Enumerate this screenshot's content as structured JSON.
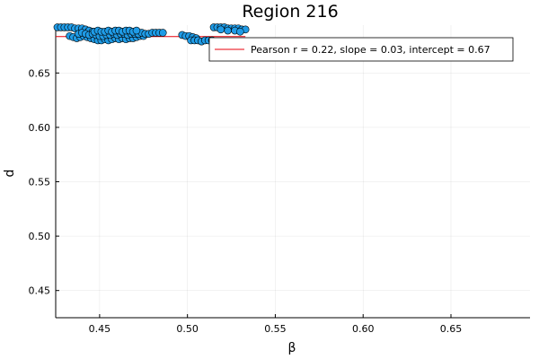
{
  "chart_data": {
    "type": "scatter",
    "title": "Region 216",
    "xlabel": "β",
    "ylabel": "d",
    "xlim": [
      0.425,
      0.695
    ],
    "ylim": [
      0.425,
      0.694
    ],
    "xticks": [
      0.45,
      0.5,
      0.55,
      0.6,
      0.65
    ],
    "xtick_labels": [
      "0.45",
      "0.50",
      "0.55",
      "0.60",
      "0.65"
    ],
    "yticks": [
      0.45,
      0.5,
      0.55,
      0.6,
      0.65
    ],
    "ytick_labels": [
      "0.45",
      "0.50",
      "0.55",
      "0.60",
      "0.65"
    ],
    "grid": true,
    "legend_position": "top-right",
    "series": [
      {
        "kind": "scatter",
        "color": "#1f9be6",
        "edge_color": "#000000",
        "points": [
          [
            0.426,
            0.692
          ],
          [
            0.428,
            0.692
          ],
          [
            0.43,
            0.692
          ],
          [
            0.432,
            0.692
          ],
          [
            0.434,
            0.692
          ],
          [
            0.436,
            0.691
          ],
          [
            0.438,
            0.691
          ],
          [
            0.44,
            0.691
          ],
          [
            0.442,
            0.69
          ],
          [
            0.444,
            0.689
          ],
          [
            0.446,
            0.688
          ],
          [
            0.448,
            0.687
          ],
          [
            0.433,
            0.684
          ],
          [
            0.435,
            0.683
          ],
          [
            0.437,
            0.682
          ],
          [
            0.439,
            0.683
          ],
          [
            0.441,
            0.684
          ],
          [
            0.443,
            0.683
          ],
          [
            0.445,
            0.682
          ],
          [
            0.447,
            0.681
          ],
          [
            0.449,
            0.68
          ],
          [
            0.451,
            0.68
          ],
          [
            0.453,
            0.681
          ],
          [
            0.455,
            0.68
          ],
          [
            0.457,
            0.681
          ],
          [
            0.459,
            0.682
          ],
          [
            0.461,
            0.681
          ],
          [
            0.463,
            0.682
          ],
          [
            0.465,
            0.681
          ],
          [
            0.467,
            0.682
          ],
          [
            0.469,
            0.682
          ],
          [
            0.471,
            0.683
          ],
          [
            0.473,
            0.684
          ],
          [
            0.475,
            0.684
          ],
          [
            0.438,
            0.686
          ],
          [
            0.44,
            0.687
          ],
          [
            0.442,
            0.686
          ],
          [
            0.444,
            0.685
          ],
          [
            0.446,
            0.686
          ],
          [
            0.448,
            0.685
          ],
          [
            0.45,
            0.684
          ],
          [
            0.452,
            0.684
          ],
          [
            0.454,
            0.685
          ],
          [
            0.456,
            0.685
          ],
          [
            0.458,
            0.686
          ],
          [
            0.46,
            0.685
          ],
          [
            0.462,
            0.686
          ],
          [
            0.464,
            0.686
          ],
          [
            0.466,
            0.685
          ],
          [
            0.468,
            0.686
          ],
          [
            0.47,
            0.686
          ],
          [
            0.472,
            0.686
          ],
          [
            0.474,
            0.687
          ],
          [
            0.476,
            0.686
          ],
          [
            0.478,
            0.686
          ],
          [
            0.447,
            0.688
          ],
          [
            0.449,
            0.689
          ],
          [
            0.451,
            0.688
          ],
          [
            0.453,
            0.688
          ],
          [
            0.455,
            0.689
          ],
          [
            0.457,
            0.688
          ],
          [
            0.459,
            0.689
          ],
          [
            0.461,
            0.689
          ],
          [
            0.463,
            0.688
          ],
          [
            0.465,
            0.689
          ],
          [
            0.467,
            0.689
          ],
          [
            0.469,
            0.688
          ],
          [
            0.471,
            0.689
          ],
          [
            0.48,
            0.687
          ],
          [
            0.482,
            0.687
          ],
          [
            0.484,
            0.687
          ],
          [
            0.486,
            0.687
          ],
          [
            0.497,
            0.685
          ],
          [
            0.499,
            0.684
          ],
          [
            0.501,
            0.684
          ],
          [
            0.503,
            0.683
          ],
          [
            0.505,
            0.682
          ],
          [
            0.502,
            0.68
          ],
          [
            0.504,
            0.68
          ],
          [
            0.506,
            0.68
          ],
          [
            0.508,
            0.679
          ],
          [
            0.51,
            0.68
          ],
          [
            0.512,
            0.68
          ],
          [
            0.514,
            0.68
          ],
          [
            0.515,
            0.692
          ],
          [
            0.517,
            0.692
          ],
          [
            0.519,
            0.692
          ],
          [
            0.521,
            0.692
          ],
          [
            0.523,
            0.691
          ],
          [
            0.525,
            0.691
          ],
          [
            0.527,
            0.691
          ],
          [
            0.529,
            0.691
          ],
          [
            0.531,
            0.69
          ],
          [
            0.533,
            0.69
          ],
          [
            0.519,
            0.69
          ],
          [
            0.523,
            0.689
          ],
          [
            0.527,
            0.689
          ],
          [
            0.53,
            0.688
          ]
        ]
      },
      {
        "kind": "line",
        "name": "Pearson r = 0.22, slope = 0.03, intercept = 0.67",
        "color": "#e8000b",
        "slope": 0.03,
        "intercept": 0.67,
        "x_range": [
          0.425,
          0.533
        ]
      }
    ]
  }
}
